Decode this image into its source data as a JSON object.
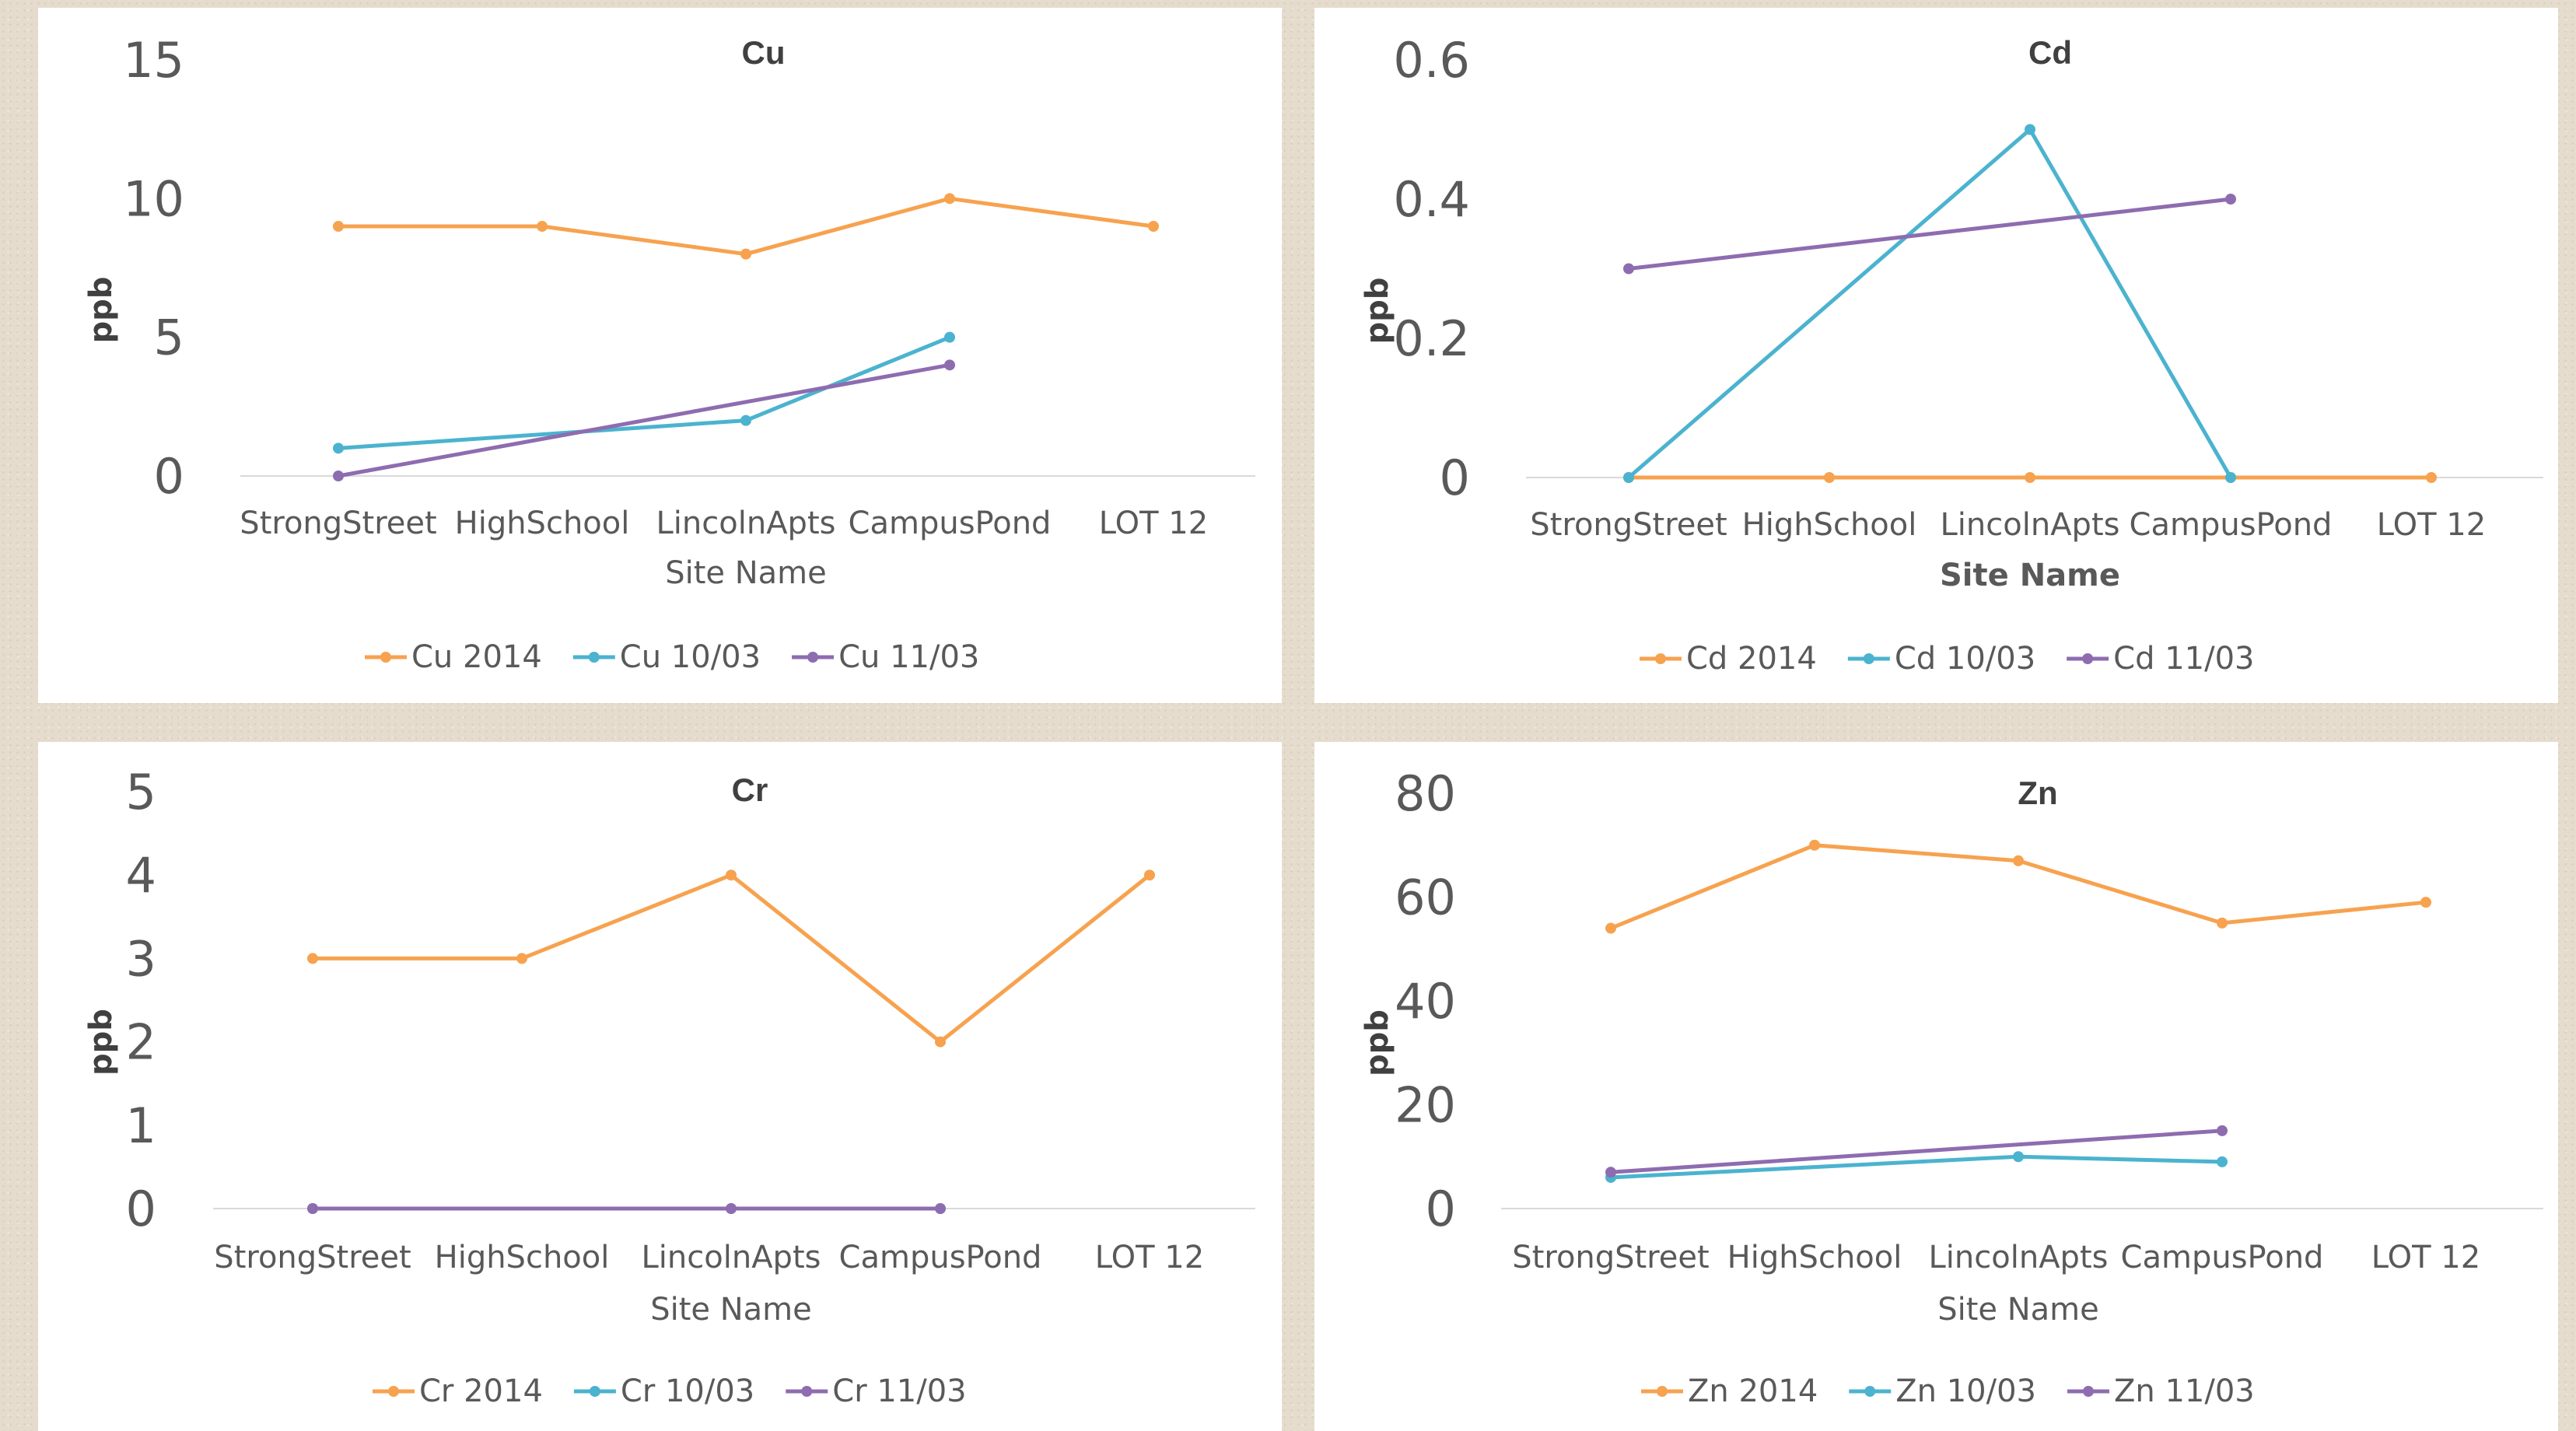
{
  "colors": {
    "s2014": "#f7a24f",
    "s1003": "#4bb3cf",
    "s1103": "#8e6cb0",
    "axis": "#d9d9d9"
  },
  "chart_data": [
    {
      "type": "line",
      "title": "Cu",
      "xlabel": "Site Name",
      "xlabel_bold": false,
      "ylabel": "ppb",
      "ylim": [
        0,
        15
      ],
      "yticks": [
        "0",
        "5",
        "10",
        "15"
      ],
      "categories": [
        "StrongStreet",
        "HighSchool",
        "LincolnApts",
        "CampusPond",
        "LOT 12"
      ],
      "series": [
        {
          "name": "Cu 2014",
          "values": [
            9,
            9,
            8,
            10,
            9
          ]
        },
        {
          "name": "Cu 10/03",
          "values": [
            1,
            null,
            2,
            5,
            null
          ]
        },
        {
          "name": "Cu 11/03",
          "values": [
            0,
            null,
            null,
            4,
            null
          ]
        }
      ]
    },
    {
      "type": "line",
      "title": "Cd",
      "xlabel": "Site Name",
      "xlabel_bold": true,
      "ylabel": "ppb",
      "ylim": [
        0,
        0.6
      ],
      "yticks": [
        "0",
        "0.2",
        "0.4",
        "0.6"
      ],
      "categories": [
        "StrongStreet",
        "HighSchool",
        "LincolnApts",
        "CampusPond",
        "LOT 12"
      ],
      "series": [
        {
          "name": "Cd 2014",
          "values": [
            0,
            0,
            0,
            0,
            0
          ]
        },
        {
          "name": "Cd 10/03",
          "values": [
            0,
            null,
            0.5,
            0,
            null
          ]
        },
        {
          "name": "Cd 11/03",
          "values": [
            0.3,
            null,
            null,
            0.4,
            null
          ]
        }
      ]
    },
    {
      "type": "line",
      "title": "Cr",
      "xlabel": "Site Name",
      "xlabel_bold": false,
      "ylabel": "ppb",
      "ylim": [
        0,
        5
      ],
      "yticks": [
        "0",
        "1",
        "2",
        "3",
        "4",
        "5"
      ],
      "categories": [
        "StrongStreet",
        "HighSchool",
        "LincolnApts",
        "CampusPond",
        "LOT 12"
      ],
      "series": [
        {
          "name": "Cr 2014",
          "values": [
            3,
            3,
            4,
            2,
            4
          ]
        },
        {
          "name": "Cr 10/03",
          "values": [
            0,
            null,
            0,
            0,
            null
          ]
        },
        {
          "name": "Cr 11/03",
          "values": [
            0,
            null,
            0,
            0,
            null
          ]
        }
      ]
    },
    {
      "type": "line",
      "title": "Zn",
      "xlabel": "Site Name",
      "xlabel_bold": false,
      "ylabel": "ppb",
      "ylim": [
        0,
        80
      ],
      "yticks": [
        "0",
        "20",
        "40",
        "60",
        "80"
      ],
      "categories": [
        "StrongStreet",
        "HighSchool",
        "LincolnApts",
        "CampusPond",
        "LOT 12"
      ],
      "series": [
        {
          "name": "Zn 2014",
          "values": [
            54,
            70,
            67,
            55,
            59
          ]
        },
        {
          "name": "Zn 10/03",
          "values": [
            6,
            null,
            10,
            9,
            null
          ]
        },
        {
          "name": "Zn 11/03",
          "values": [
            7,
            null,
            null,
            15,
            null
          ]
        }
      ]
    }
  ]
}
